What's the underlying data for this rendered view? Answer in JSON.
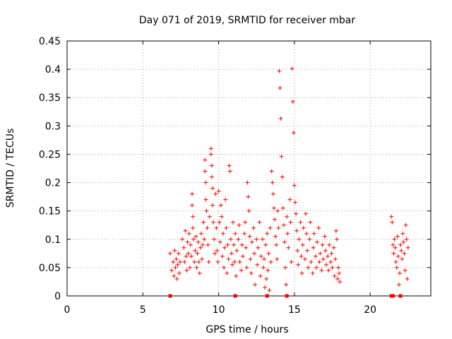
{
  "chart_data": {
    "type": "scatter",
    "title": "Day 071 of 2019, SRMTID for receiver mbar",
    "xlabel": "GPS time / hours",
    "ylabel": "SRMTID / TECUs",
    "xlim": [
      0,
      24
    ],
    "ylim": [
      0,
      0.45
    ],
    "xticks": [
      "0",
      "5",
      "10",
      "15",
      "20"
    ],
    "yticks": [
      "0",
      "0.05",
      "0.1",
      "0.15",
      "0.2",
      "0.25",
      "0.3",
      "0.35",
      "0.4",
      "0.45"
    ],
    "grid": true,
    "marker": "+",
    "color": "#ff0000",
    "series": [
      {
        "name": "SRMTID",
        "points": [
          [
            6.8,
            0.075
          ],
          [
            6.9,
            0.045
          ],
          [
            7.0,
            0.06
          ],
          [
            7.05,
            0.035
          ],
          [
            7.1,
            0.08
          ],
          [
            7.15,
            0.05
          ],
          [
            7.2,
            0.065
          ],
          [
            7.25,
            0.03
          ],
          [
            7.3,
            0.055
          ],
          [
            7.35,
            0.075
          ],
          [
            7.4,
            0.04
          ],
          [
            7.45,
            0.06
          ],
          [
            7.6,
            0.1
          ],
          [
            7.7,
            0.085
          ],
          [
            7.75,
            0.06
          ],
          [
            7.8,
            0.115
          ],
          [
            7.85,
            0.07
          ],
          [
            7.9,
            0.045
          ],
          [
            7.95,
            0.095
          ],
          [
            8.0,
            0.075
          ],
          [
            8.05,
            0.11
          ],
          [
            8.1,
            0.05
          ],
          [
            8.15,
            0.09
          ],
          [
            8.2,
            0.07
          ],
          [
            8.25,
            0.18
          ],
          [
            8.25,
            0.16
          ],
          [
            8.3,
            0.14
          ],
          [
            8.3,
            0.12
          ],
          [
            8.35,
            0.1
          ],
          [
            8.4,
            0.06
          ],
          [
            8.45,
            0.08
          ],
          [
            8.5,
            0.105
          ],
          [
            8.55,
            0.05
          ],
          [
            8.6,
            0.075
          ],
          [
            8.65,
            0.095
          ],
          [
            8.7,
            0.06
          ],
          [
            8.75,
            0.04
          ],
          [
            8.8,
            0.085
          ],
          [
            8.85,
            0.11
          ],
          [
            8.9,
            0.065
          ],
          [
            8.95,
            0.09
          ],
          [
            9.0,
            0.13
          ],
          [
            9.05,
            0.1
          ],
          [
            9.1,
            0.24
          ],
          [
            9.1,
            0.22
          ],
          [
            9.15,
            0.2
          ],
          [
            9.15,
            0.17
          ],
          [
            9.2,
            0.15
          ],
          [
            9.25,
            0.12
          ],
          [
            9.3,
            0.09
          ],
          [
            9.35,
            0.06
          ],
          [
            9.4,
            0.14
          ],
          [
            9.5,
            0.26
          ],
          [
            9.5,
            0.25
          ],
          [
            9.55,
            0.23
          ],
          [
            9.55,
            0.21
          ],
          [
            9.6,
            0.19
          ],
          [
            9.6,
            0.16
          ],
          [
            9.65,
            0.13
          ],
          [
            9.7,
            0.1
          ],
          [
            9.75,
            0.075
          ],
          [
            9.8,
            0.18
          ],
          [
            9.85,
            0.12
          ],
          [
            9.9,
            0.08
          ],
          [
            9.95,
            0.06
          ],
          [
            10.0,
            0.185
          ],
          [
            10.05,
            0.13
          ],
          [
            10.1,
            0.095
          ],
          [
            10.15,
            0.16
          ],
          [
            10.2,
            0.14
          ],
          [
            10.25,
            0.07
          ],
          [
            10.3,
            0.11
          ],
          [
            10.35,
            0.05
          ],
          [
            10.4,
            0.085
          ],
          [
            10.45,
            0.17
          ],
          [
            10.5,
            0.12
          ],
          [
            10.55,
            0.04
          ],
          [
            10.6,
            0.09
          ],
          [
            10.65,
            0.065
          ],
          [
            10.7,
            0.23
          ],
          [
            10.75,
            0.22
          ],
          [
            10.8,
            0.1
          ],
          [
            10.85,
            0.075
          ],
          [
            10.9,
            0.055
          ],
          [
            10.95,
            0.13
          ],
          [
            11.0,
            0.09
          ],
          [
            11.05,
            0.06
          ],
          [
            11.1,
            0.11
          ],
          [
            11.15,
            0.035
          ],
          [
            11.2,
            0.08
          ],
          [
            11.3,
            0.1
          ],
          [
            11.35,
            0.125
          ],
          [
            11.4,
            0.06
          ],
          [
            11.5,
            0.045
          ],
          [
            11.55,
            0.09
          ],
          [
            11.6,
            0.07
          ],
          [
            11.7,
            0.11
          ],
          [
            11.75,
            0.13
          ],
          [
            11.8,
            0.085
          ],
          [
            11.85,
            0.05
          ],
          [
            11.9,
            0.2
          ],
          [
            11.95,
            0.175
          ],
          [
            12.0,
            0.15
          ],
          [
            12.05,
            0.105
          ],
          [
            12.1,
            0.065
          ],
          [
            12.15,
            0.04
          ],
          [
            12.2,
            0.095
          ],
          [
            12.3,
            0.12
          ],
          [
            12.35,
            0.075
          ],
          [
            12.4,
            0.02
          ],
          [
            12.5,
            0.1
          ],
          [
            12.55,
            0.055
          ],
          [
            12.6,
            0.085
          ],
          [
            12.7,
            0.13
          ],
          [
            12.75,
            0.035
          ],
          [
            12.8,
            0.07
          ],
          [
            12.9,
            0.1
          ],
          [
            12.95,
            0.05
          ],
          [
            13.0,
            0.065
          ],
          [
            13.05,
            0.015
          ],
          [
            13.1,
            0.09
          ],
          [
            13.15,
            0.03
          ],
          [
            13.2,
            0.11
          ],
          [
            13.25,
            0.045
          ],
          [
            13.3,
            0.075
          ],
          [
            13.35,
            0.01
          ],
          [
            13.4,
            0.12
          ],
          [
            13.45,
            0.06
          ],
          [
            13.5,
            0.22
          ],
          [
            13.55,
            0.2
          ],
          [
            13.6,
            0.18
          ],
          [
            13.65,
            0.155
          ],
          [
            13.7,
            0.135
          ],
          [
            13.75,
            0.105
          ],
          [
            13.8,
            0.09
          ],
          [
            13.85,
            0.065
          ],
          [
            13.9,
            0.15
          ],
          [
            13.95,
            0.12
          ],
          [
            14.0,
            0.397
          ],
          [
            14.05,
            0.367
          ],
          [
            14.1,
            0.313
          ],
          [
            14.15,
            0.246
          ],
          [
            14.2,
            0.21
          ],
          [
            14.25,
            0.155
          ],
          [
            14.3,
            0.125
          ],
          [
            14.35,
            0.095
          ],
          [
            14.4,
            0.05
          ],
          [
            14.45,
            0.02
          ],
          [
            14.5,
            0.14
          ],
          [
            14.55,
            0.11
          ],
          [
            14.6,
            0.085
          ],
          [
            14.7,
            0.17
          ],
          [
            14.75,
            0.13
          ],
          [
            14.8,
            0.06
          ],
          [
            14.85,
            0.401
          ],
          [
            14.9,
            0.343
          ],
          [
            14.95,
            0.288
          ],
          [
            15.0,
            0.195
          ],
          [
            15.05,
            0.165
          ],
          [
            15.1,
            0.145
          ],
          [
            15.15,
            0.115
          ],
          [
            15.2,
            0.08
          ],
          [
            15.25,
            0.055
          ],
          [
            15.3,
            0.1
          ],
          [
            15.4,
            0.13
          ],
          [
            15.45,
            0.07
          ],
          [
            15.5,
            0.04
          ],
          [
            15.55,
            0.09
          ],
          [
            15.6,
            0.12
          ],
          [
            15.7,
            0.065
          ],
          [
            15.75,
            0.145
          ],
          [
            15.8,
            0.11
          ],
          [
            15.85,
            0.08
          ],
          [
            15.9,
            0.05
          ],
          [
            16.0,
            0.1
          ],
          [
            16.05,
            0.13
          ],
          [
            16.1,
            0.06
          ],
          [
            16.2,
            0.04
          ],
          [
            16.25,
            0.085
          ],
          [
            16.3,
            0.11
          ],
          [
            16.4,
            0.07
          ],
          [
            16.45,
            0.05
          ],
          [
            16.5,
            0.095
          ],
          [
            16.6,
            0.12
          ],
          [
            16.65,
            0.06
          ],
          [
            16.7,
            0.075
          ],
          [
            16.8,
            0.045
          ],
          [
            16.85,
            0.09
          ],
          [
            16.9,
            0.065
          ],
          [
            17.0,
            0.105
          ],
          [
            17.05,
            0.08
          ],
          [
            17.1,
            0.055
          ],
          [
            17.2,
            0.07
          ],
          [
            17.25,
            0.045
          ],
          [
            17.3,
            0.09
          ],
          [
            17.4,
            0.06
          ],
          [
            17.45,
            0.075
          ],
          [
            17.5,
            0.05
          ],
          [
            17.6,
            0.085
          ],
          [
            17.65,
            0.035
          ],
          [
            17.7,
            0.065
          ],
          [
            17.75,
            0.115
          ],
          [
            17.8,
            0.1
          ],
          [
            17.85,
            0.03
          ],
          [
            17.9,
            0.05
          ],
          [
            17.95,
            0.04
          ],
          [
            18.0,
            0.025
          ],
          [
            21.4,
            0.14
          ],
          [
            21.45,
            0.13
          ],
          [
            21.5,
            0.09
          ],
          [
            21.55,
            0.075
          ],
          [
            21.6,
            0.1
          ],
          [
            21.65,
            0.085
          ],
          [
            21.7,
            0.06
          ],
          [
            21.75,
            0.05
          ],
          [
            21.8,
            0.105
          ],
          [
            21.85,
            0.07
          ],
          [
            21.9,
            0.02
          ],
          [
            21.95,
            0.04
          ],
          [
            22.0,
            0.09
          ],
          [
            22.05,
            0.08
          ],
          [
            22.1,
            0.065
          ],
          [
            22.15,
            0.11
          ],
          [
            22.2,
            0.095
          ],
          [
            22.25,
            0.075
          ],
          [
            22.3,
            0.045
          ],
          [
            22.35,
            0.125
          ],
          [
            22.4,
            0.1
          ],
          [
            22.45,
            0.03
          ],
          [
            22.5,
            0.085
          ]
        ]
      }
    ],
    "zero_markers_x": [
      6.8,
      11.1,
      13.2,
      14.5,
      21.4,
      21.5,
      22.0
    ]
  }
}
